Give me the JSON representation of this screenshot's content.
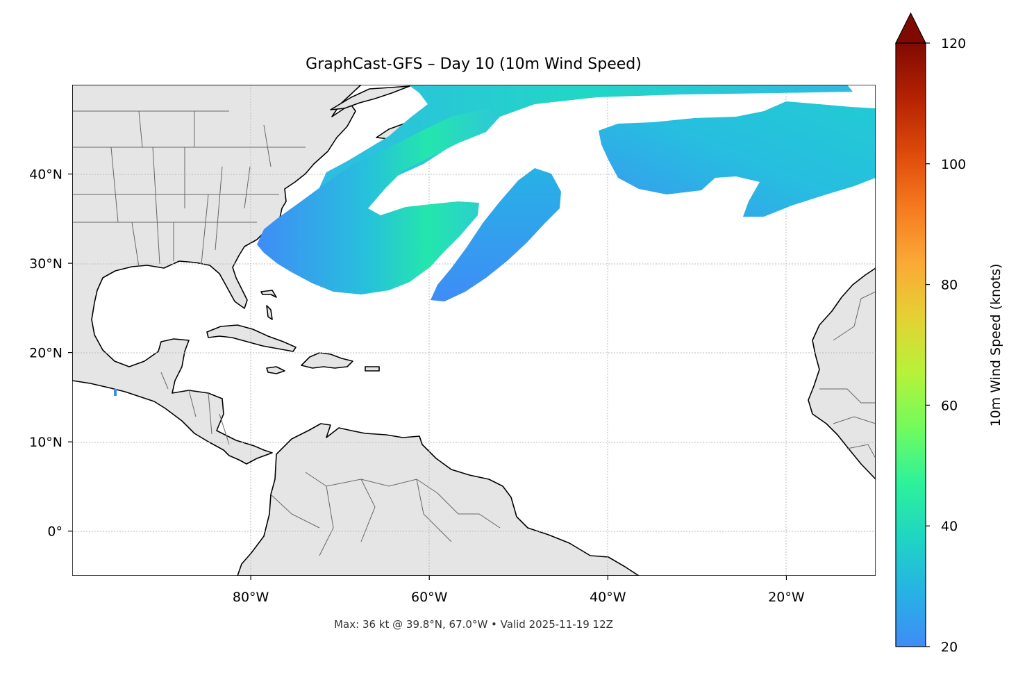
{
  "title": "GraphCast-GFS – Day 10 (10m Wind Speed)",
  "footer": "Max: 36 kt @ 39.8°N, 67.0°W • Valid 2025-11-19 12Z",
  "map": {
    "lon_range": [
      -100,
      -10
    ],
    "lat_range": [
      -5,
      50
    ],
    "lat_ticks": [
      {
        "value": 40,
        "label": "40°N"
      },
      {
        "value": 30,
        "label": "30°N"
      },
      {
        "value": 20,
        "label": "20°N"
      },
      {
        "value": 10,
        "label": "10°N"
      },
      {
        "value": 0,
        "label": "0°"
      }
    ],
    "lon_ticks": [
      {
        "value": -80,
        "label": "80°W"
      },
      {
        "value": -60,
        "label": "60°W"
      },
      {
        "value": -40,
        "label": "40°W"
      },
      {
        "value": -20,
        "label": "20°W"
      }
    ],
    "gridlines": true,
    "colors": {
      "land": "#e5e5e5",
      "coast": "#000000",
      "borders": "#666666",
      "grid": "#bbbbbb",
      "ocean": "#ffffff"
    }
  },
  "colorbar": {
    "label": "10m Wind Speed (knots)",
    "min": 20,
    "max": 120,
    "extend": "max",
    "ticks": [
      {
        "value": 20,
        "label": "20"
      },
      {
        "value": 40,
        "label": "40"
      },
      {
        "value": 60,
        "label": "60"
      },
      {
        "value": 80,
        "label": "80"
      },
      {
        "value": 100,
        "label": "100"
      },
      {
        "value": 120,
        "label": "120"
      }
    ],
    "colormap": [
      "#3f8cf6",
      "#27b2e5",
      "#1ed6c2",
      "#2ef29a",
      "#73fb5c",
      "#b7f239",
      "#e5d134",
      "#fba936",
      "#f67a1f",
      "#de4a0a",
      "#b52203",
      "#800a00"
    ]
  },
  "max_wind": {
    "speed_kt": 36,
    "lat": 39.8,
    "lon": -67.0
  }
}
